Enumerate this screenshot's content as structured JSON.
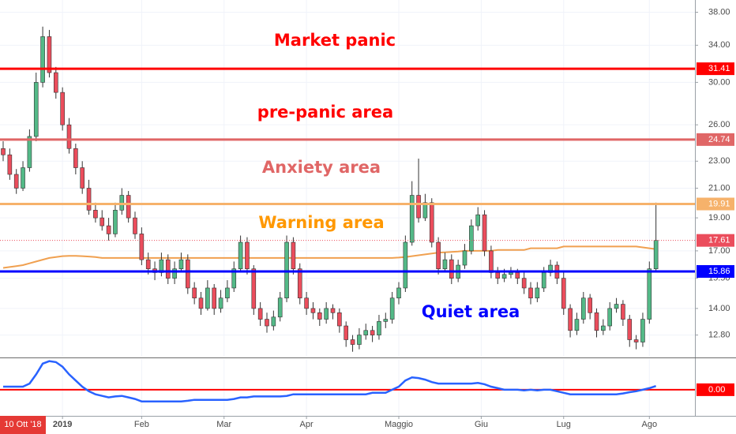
{
  "chart_data": {
    "type": "candlestick",
    "log_scale": true,
    "grid": true,
    "up_color": "#53b987",
    "down_color": "#eb4d5c",
    "ylim": [
      11.9,
      39.6
    ],
    "yticks": [
      {
        "value": 12.8,
        "label": "12.80"
      },
      {
        "value": 14,
        "label": "14.00"
      },
      {
        "value": 15.5,
        "label": "15.50"
      },
      {
        "value": 17,
        "label": "17.00"
      },
      {
        "value": 19,
        "label": "19.00"
      },
      {
        "value": 21,
        "label": "21.00"
      },
      {
        "value": 23,
        "label": "23.00"
      },
      {
        "value": 26,
        "label": "26.00"
      },
      {
        "value": 30,
        "label": "30.00"
      },
      {
        "value": 34,
        "label": "34.00"
      },
      {
        "value": 38,
        "label": "38.00"
      }
    ],
    "xticks": [
      {
        "value": 9,
        "label": "2019"
      },
      {
        "value": 21,
        "label": "Feb"
      },
      {
        "value": 33.5,
        "label": "Mar"
      },
      {
        "value": 46,
        "label": "Apr"
      },
      {
        "value": 60,
        "label": "Maggio"
      },
      {
        "value": 72.5,
        "label": "Giu"
      },
      {
        "value": 85,
        "label": "Lug"
      },
      {
        "value": 98,
        "label": "Ago"
      }
    ],
    "crosshair_label": "10 Ott '18",
    "ohlc": [
      [
        24,
        24.6,
        23,
        23.5
      ],
      [
        23.5,
        24,
        21.6,
        22
      ],
      [
        22,
        22.4,
        20.6,
        21
      ],
      [
        21,
        23,
        20.8,
        22.5
      ],
      [
        22.5,
        25.6,
        22.2,
        25
      ],
      [
        25,
        31,
        24.6,
        30
      ],
      [
        30,
        36.2,
        29.5,
        35
      ],
      [
        35,
        35.8,
        30.5,
        31
      ],
      [
        31,
        31.6,
        28.4,
        29
      ],
      [
        29,
        29.5,
        25.5,
        26
      ],
      [
        26,
        26.6,
        23.6,
        24
      ],
      [
        24,
        24.4,
        22,
        22.5
      ],
      [
        22.5,
        23,
        20.6,
        21
      ],
      [
        21,
        21.6,
        19.2,
        19.5
      ],
      [
        19.5,
        20,
        18.7,
        19
      ],
      [
        19,
        19.5,
        18.2,
        18.5
      ],
      [
        18.5,
        19,
        17.6,
        18
      ],
      [
        18,
        20,
        17.8,
        19.5
      ],
      [
        19.5,
        21,
        19.2,
        20.5
      ],
      [
        20.5,
        20.8,
        18.7,
        19
      ],
      [
        19,
        19.4,
        17.7,
        18
      ],
      [
        18,
        18.4,
        16.2,
        16.5
      ],
      [
        16.5,
        16.9,
        15.7,
        16
      ],
      [
        16,
        16.4,
        15.4,
        15.8
      ],
      [
        15.8,
        16.9,
        15.6,
        16.5
      ],
      [
        16.5,
        16.8,
        15.2,
        15.5
      ],
      [
        15.5,
        16.4,
        15.2,
        16
      ],
      [
        16,
        16.9,
        15.8,
        16.5
      ],
      [
        16.5,
        16.8,
        14.7,
        15
      ],
      [
        15,
        15.3,
        14.2,
        14.5
      ],
      [
        14.5,
        14.8,
        13.7,
        14
      ],
      [
        14,
        15.4,
        13.9,
        15
      ],
      [
        15,
        15.2,
        13.7,
        14
      ],
      [
        14,
        14.9,
        13.8,
        14.5
      ],
      [
        14.5,
        15.4,
        14.3,
        15
      ],
      [
        15,
        16.4,
        14.8,
        16
      ],
      [
        16,
        17.9,
        15.8,
        17.5
      ],
      [
        17.5,
        17.8,
        15.7,
        16
      ],
      [
        16,
        16.2,
        13.7,
        14
      ],
      [
        14,
        14.3,
        13.2,
        13.5
      ],
      [
        13.5,
        13.8,
        12.9,
        13.2
      ],
      [
        13.2,
        13.9,
        13,
        13.6
      ],
      [
        13.6,
        14.8,
        13.4,
        14.5
      ],
      [
        14.5,
        17.9,
        14.3,
        17.5
      ],
      [
        17.5,
        17.8,
        15.7,
        16
      ],
      [
        16,
        16.3,
        14.2,
        14.5
      ],
      [
        14.5,
        14.8,
        13.7,
        14
      ],
      [
        14,
        14.3,
        13.5,
        13.8
      ],
      [
        13.8,
        14,
        13.2,
        13.5
      ],
      [
        13.5,
        14.3,
        13.3,
        14
      ],
      [
        14,
        14.2,
        13.5,
        13.8
      ],
      [
        13.8,
        14,
        12.9,
        13.2
      ],
      [
        13.2,
        13.4,
        12.3,
        12.6
      ],
      [
        12.6,
        12.8,
        12.1,
        12.4
      ],
      [
        12.4,
        13.1,
        12.2,
        12.8
      ],
      [
        12.8,
        13.3,
        12.6,
        13
      ],
      [
        13,
        13.2,
        12.5,
        12.8
      ],
      [
        12.8,
        13.7,
        12.6,
        13.4
      ],
      [
        13.4,
        13.8,
        13.1,
        13.5
      ],
      [
        13.5,
        14.8,
        13.3,
        14.5
      ],
      [
        14.5,
        15.3,
        14.2,
        15
      ],
      [
        15,
        17.9,
        14.8,
        17.5
      ],
      [
        17.5,
        21.5,
        17.3,
        20.5
      ],
      [
        20.5,
        23.2,
        18.7,
        19
      ],
      [
        19,
        20.6,
        18.8,
        20
      ],
      [
        20,
        20.3,
        17.2,
        17.5
      ],
      [
        17.5,
        17.8,
        15.7,
        16
      ],
      [
        16,
        16.9,
        15.8,
        16.5
      ],
      [
        16.5,
        16.8,
        15.2,
        15.5
      ],
      [
        15.5,
        16.5,
        15.3,
        16.2
      ],
      [
        16.2,
        17.4,
        16,
        17
      ],
      [
        17,
        18.9,
        16.8,
        18.5
      ],
      [
        18.5,
        19.7,
        18.2,
        19.2
      ],
      [
        19.2,
        19.5,
        16.7,
        17
      ],
      [
        17,
        17.3,
        15.5,
        15.8
      ],
      [
        15.8,
        16.1,
        15.2,
        15.5
      ],
      [
        15.5,
        16,
        15.3,
        15.7
      ],
      [
        15.7,
        16.1,
        15.5,
        15.8
      ],
      [
        15.8,
        16,
        15.2,
        15.5
      ],
      [
        15.5,
        15.8,
        14.7,
        15
      ],
      [
        15,
        15.3,
        14.2,
        14.5
      ],
      [
        14.5,
        15.3,
        14.3,
        15
      ],
      [
        15,
        16.1,
        14.8,
        15.8
      ],
      [
        15.8,
        16.5,
        15.6,
        16.2
      ],
      [
        16.2,
        16.4,
        15.2,
        15.5
      ],
      [
        15.5,
        15.8,
        13.7,
        14
      ],
      [
        14,
        14.2,
        12.7,
        13
      ],
      [
        13,
        13.8,
        12.8,
        13.5
      ],
      [
        13.5,
        14.8,
        13.3,
        14.5
      ],
      [
        14.5,
        14.7,
        13.5,
        13.8
      ],
      [
        13.8,
        14,
        12.7,
        13
      ],
      [
        13,
        13.5,
        12.8,
        13.2
      ],
      [
        13.2,
        14.3,
        13,
        14
      ],
      [
        14,
        14.5,
        13.8,
        14.2
      ],
      [
        14.2,
        14.4,
        13.2,
        13.5
      ],
      [
        13.5,
        13.7,
        12.3,
        12.6
      ],
      [
        12.6,
        12.8,
        12.2,
        12.5
      ],
      [
        12.5,
        13.8,
        12.3,
        13.5
      ],
      [
        13.5,
        16.4,
        13.3,
        16
      ],
      [
        16,
        20,
        15.8,
        17.61
      ]
    ],
    "ma": {
      "color": "#f0a050",
      "values": [
        16.05,
        16.1,
        16.15,
        16.2,
        16.3,
        16.4,
        16.5,
        16.6,
        16.65,
        16.7,
        16.72,
        16.72,
        16.7,
        16.68,
        16.65,
        16.6,
        16.6,
        16.6,
        16.6,
        16.6,
        16.6,
        16.6,
        16.6,
        16.6,
        16.6,
        16.6,
        16.6,
        16.6,
        16.6,
        16.6,
        16.6,
        16.6,
        16.6,
        16.6,
        16.6,
        16.6,
        16.6,
        16.6,
        16.6,
        16.6,
        16.6,
        16.6,
        16.6,
        16.6,
        16.6,
        16.6,
        16.6,
        16.6,
        16.6,
        16.6,
        16.6,
        16.6,
        16.6,
        16.6,
        16.6,
        16.6,
        16.6,
        16.6,
        16.6,
        16.6,
        16.62,
        16.65,
        16.7,
        16.75,
        16.8,
        16.85,
        16.9,
        16.92,
        16.94,
        16.96,
        17,
        17,
        17,
        17,
        17,
        17.05,
        17.05,
        17.05,
        17.05,
        17.05,
        17.15,
        17.15,
        17.15,
        17.15,
        17.15,
        17.25,
        17.25,
        17.25,
        17.25,
        17.25,
        17.25,
        17.25,
        17.25,
        17.25,
        17.25,
        17.25,
        17.25,
        17.2,
        17.15,
        17.1
      ]
    },
    "levels": [
      {
        "value": 31.41,
        "color": "#ff0000"
      },
      {
        "value": 24.74,
        "color": "#e06666"
      },
      {
        "value": 19.91,
        "color": "#f6b26b"
      },
      {
        "value": 17.61,
        "color": "#eb4d5c",
        "dotted": true
      },
      {
        "value": 15.86,
        "color": "#0000ff"
      }
    ],
    "zones": [
      {
        "text": "Market panic",
        "color": "#ff0000"
      },
      {
        "text": "pre-panic area",
        "color": "#ff0000"
      },
      {
        "text": "Anxiety area",
        "color": "#e06666"
      },
      {
        "text": "Warning area",
        "color": "#ff9800"
      },
      {
        "text": "Quiet area",
        "color": "#0000ff"
      }
    ],
    "oscillator": {
      "color": "#2962ff",
      "ylim": [
        -0.8,
        1
      ],
      "zero": {
        "value": 0,
        "label": "0.00",
        "color": "#ff0000"
      },
      "values": [
        0.1,
        0.1,
        0.1,
        0.1,
        0.2,
        0.5,
        0.85,
        0.93,
        0.9,
        0.75,
        0.5,
        0.3,
        0.1,
        -0.05,
        -0.15,
        -0.2,
        -0.25,
        -0.22,
        -0.2,
        -0.25,
        -0.3,
        -0.38,
        -0.38,
        -0.38,
        -0.38,
        -0.38,
        -0.38,
        -0.38,
        -0.36,
        -0.33,
        -0.33,
        -0.33,
        -0.33,
        -0.33,
        -0.33,
        -0.3,
        -0.25,
        -0.25,
        -0.22,
        -0.22,
        -0.22,
        -0.22,
        -0.22,
        -0.2,
        -0.15,
        -0.15,
        -0.15,
        -0.15,
        -0.15,
        -0.15,
        -0.15,
        -0.15,
        -0.15,
        -0.15,
        -0.15,
        -0.15,
        -0.1,
        -0.1,
        -0.1,
        0,
        0.1,
        0.3,
        0.4,
        0.38,
        0.33,
        0.25,
        0.2,
        0.2,
        0.2,
        0.2,
        0.2,
        0.2,
        0.22,
        0.18,
        0.1,
        0.05,
        0,
        0,
        0,
        -0.02,
        0,
        -0.02,
        0,
        0,
        -0.05,
        -0.1,
        -0.15,
        -0.15,
        -0.15,
        -0.15,
        -0.15,
        -0.15,
        -0.15,
        -0.15,
        -0.12,
        -0.08,
        -0.05,
        0,
        0.05,
        0.12
      ]
    }
  }
}
